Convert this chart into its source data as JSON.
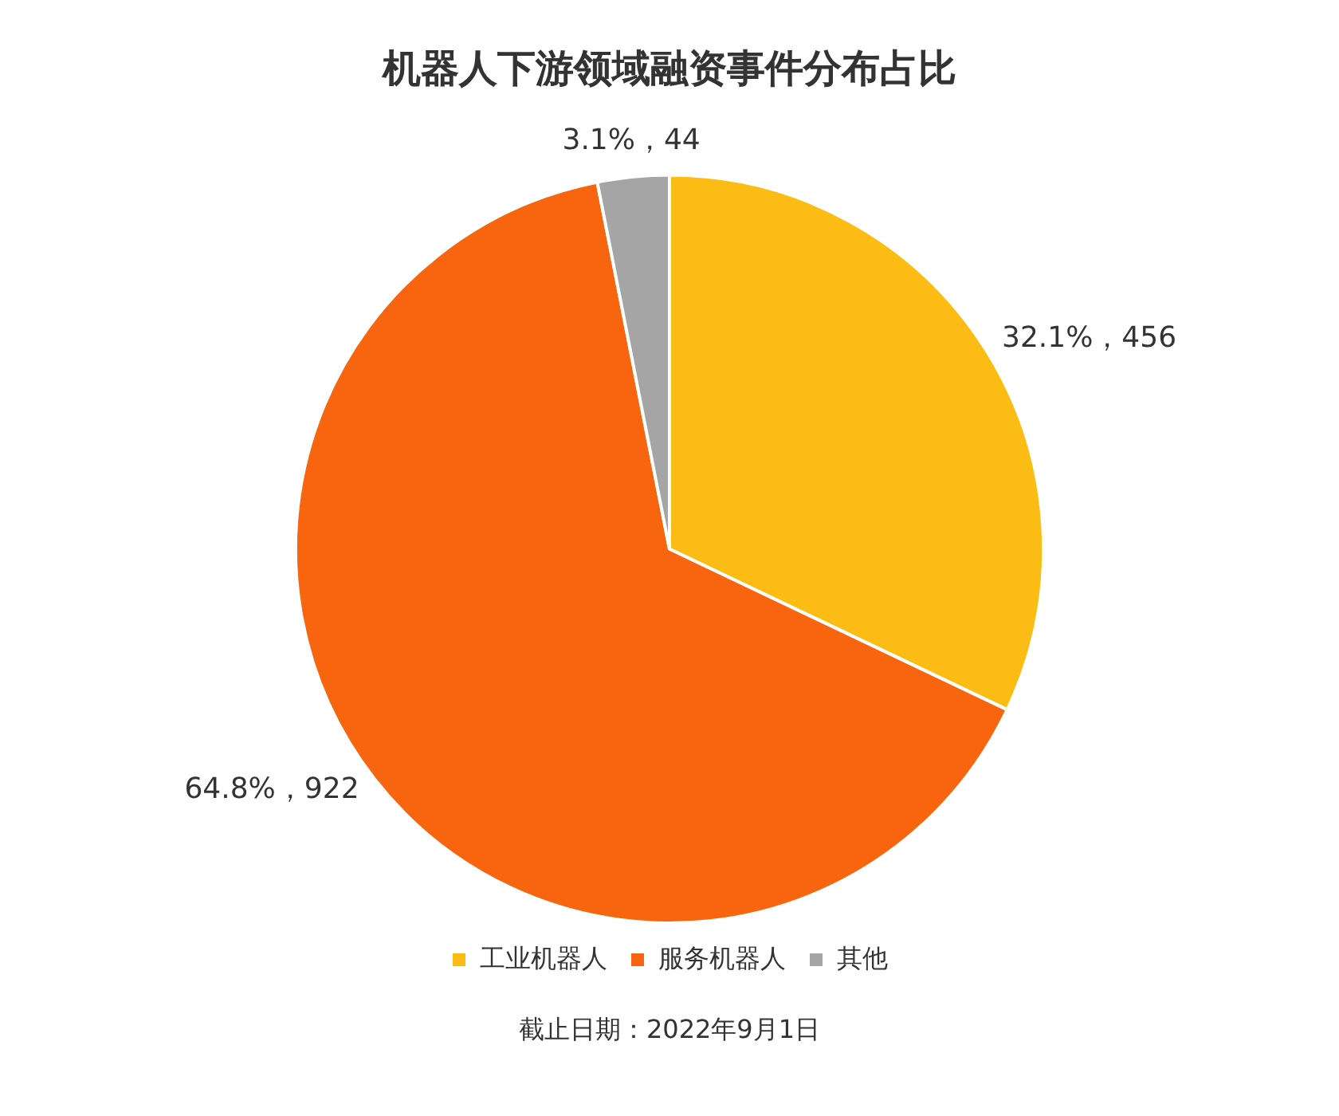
{
  "chart_data": {
    "type": "pie",
    "title": "机器人下游领域融资事件分布占比",
    "categories": [
      "工业机器人",
      "服务机器人",
      "其他"
    ],
    "values": [
      456,
      922,
      44
    ],
    "colors": [
      "#fbbd14",
      "#f8650f",
      "#a5a5a5"
    ],
    "value_labels": [
      "32.1%，456",
      "64.8%，922",
      "3.1%，44"
    ],
    "legend": "bottom",
    "annotations": [
      "截止日期：2022年9月1日"
    ]
  }
}
